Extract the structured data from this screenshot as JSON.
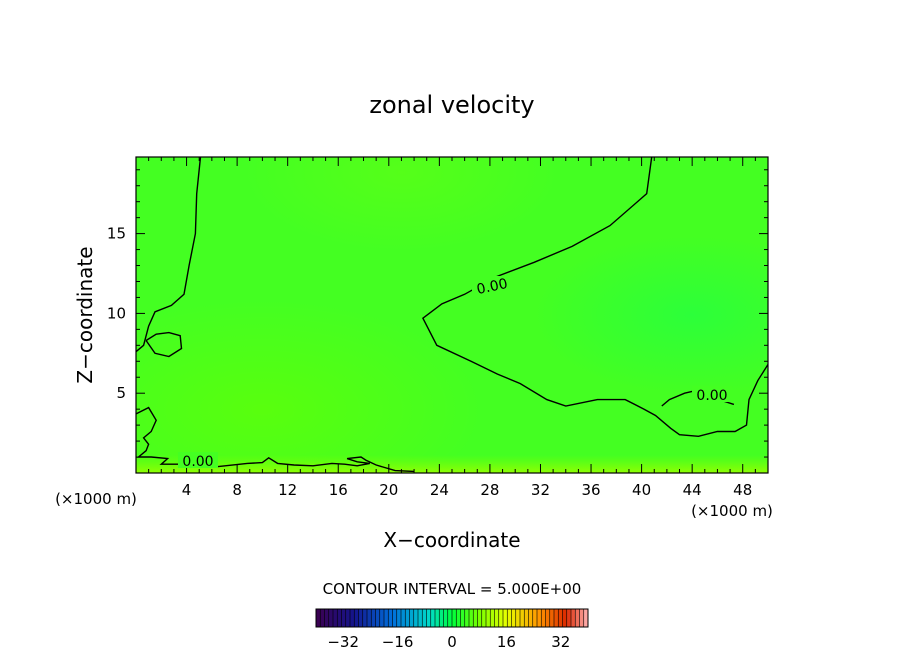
{
  "chart_data": {
    "type": "heatmap",
    "title": "zonal velocity",
    "xlabel": "X−coordinate",
    "ylabel": "Z−coordinate",
    "x_unit": "(×1000 m)",
    "x_unit_right": "(×1000 m)",
    "xlim": [
      0,
      50
    ],
    "ylim": [
      0,
      19.8
    ],
    "x_ticks": [
      4,
      8,
      12,
      16,
      20,
      24,
      28,
      32,
      36,
      40,
      44,
      48
    ],
    "y_ticks": [
      5,
      10,
      15
    ],
    "contour_interval_text": "CONTOUR INTERVAL = 5.000E+00",
    "colorbar": {
      "range": [
        -40,
        40
      ],
      "ticks": [
        -32,
        -16,
        0,
        16,
        32
      ],
      "tick_labels": [
        "−32",
        "−16",
        "0",
        "16",
        "32"
      ]
    },
    "contour_labels": [
      "0.00",
      "0.00",
      "0.00"
    ],
    "contour_lines": [
      {
        "level": 0,
        "points": [
          [
            5.1,
            19.8
          ],
          [
            4.8,
            17.5
          ],
          [
            4.7,
            15
          ],
          [
            4.2,
            13
          ],
          [
            3.8,
            11.2
          ],
          [
            2.8,
            10.5
          ],
          [
            1.5,
            10.1
          ],
          [
            1.0,
            9.2
          ],
          [
            0.6,
            8
          ],
          [
            0,
            7.6
          ]
        ]
      },
      {
        "level": 0,
        "points": [
          [
            40.8,
            19.8
          ],
          [
            40.4,
            17.5
          ],
          [
            37.5,
            15.5
          ],
          [
            34.5,
            14.2
          ],
          [
            31.5,
            13.2
          ],
          [
            28.5,
            12.3
          ],
          [
            26,
            11.2
          ],
          [
            24.2,
            10.6
          ],
          [
            22.7,
            9.7
          ],
          [
            23.8,
            8
          ],
          [
            26.5,
            7
          ],
          [
            28.6,
            6.2
          ],
          [
            30.4,
            5.6
          ],
          [
            32.5,
            4.6
          ],
          [
            34,
            4.2
          ],
          [
            36.5,
            4.6
          ],
          [
            38.7,
            4.6
          ],
          [
            40.2,
            4
          ],
          [
            41.1,
            3.6
          ],
          [
            42.3,
            2.8
          ],
          [
            43,
            2.4
          ],
          [
            44.5,
            2.3
          ],
          [
            46,
            2.6
          ],
          [
            47.4,
            2.6
          ],
          [
            48.3,
            3
          ],
          [
            48.5,
            4.6
          ],
          [
            49.2,
            5.8
          ],
          [
            50,
            6.8
          ]
        ]
      },
      {
        "level": 0,
        "points": [
          [
            41.6,
            4.2
          ],
          [
            42.2,
            4.6
          ],
          [
            43.4,
            5
          ],
          [
            44.5,
            5.2
          ],
          [
            45.5,
            4.7
          ],
          [
            46.5,
            4.5
          ],
          [
            47.3,
            4.3
          ]
        ]
      },
      {
        "level": 0,
        "points": [
          [
            0,
            3.7
          ],
          [
            1.0,
            4.1
          ],
          [
            1.6,
            3.3
          ],
          [
            1.2,
            2.6
          ],
          [
            0.6,
            2.2
          ],
          [
            1.0,
            1.8
          ],
          [
            0.8,
            1.4
          ],
          [
            0.2,
            1.0
          ],
          [
            1.2,
            1.0
          ],
          [
            2.5,
            0.9
          ],
          [
            2.0,
            0.55
          ],
          [
            4.3,
            0.55
          ],
          [
            6.5,
            0.4
          ],
          [
            8.8,
            0.6
          ],
          [
            10,
            0.65
          ],
          [
            10.5,
            0.95
          ],
          [
            11.2,
            0.6
          ],
          [
            12.5,
            0.5
          ],
          [
            14,
            0.45
          ],
          [
            15.5,
            0.6
          ],
          [
            16.5,
            0.55
          ],
          [
            17.5,
            0.45
          ],
          [
            18.5,
            0.6
          ],
          [
            17.5,
            0.7
          ],
          [
            16.7,
            0.9
          ],
          [
            17.8,
            1.0
          ],
          [
            18.2,
            0.8
          ],
          [
            19,
            0.5
          ],
          [
            20.5,
            0.15
          ],
          [
            22,
            0.1
          ]
        ]
      },
      {
        "level": 0,
        "points": [
          [
            0.8,
            8.3
          ],
          [
            1.6,
            8.7
          ],
          [
            2.6,
            8.8
          ],
          [
            3.5,
            8.6
          ],
          [
            3.6,
            7.8
          ],
          [
            2.6,
            7.3
          ],
          [
            1.5,
            7.5
          ],
          [
            0.8,
            8.3
          ]
        ]
      }
    ]
  }
}
